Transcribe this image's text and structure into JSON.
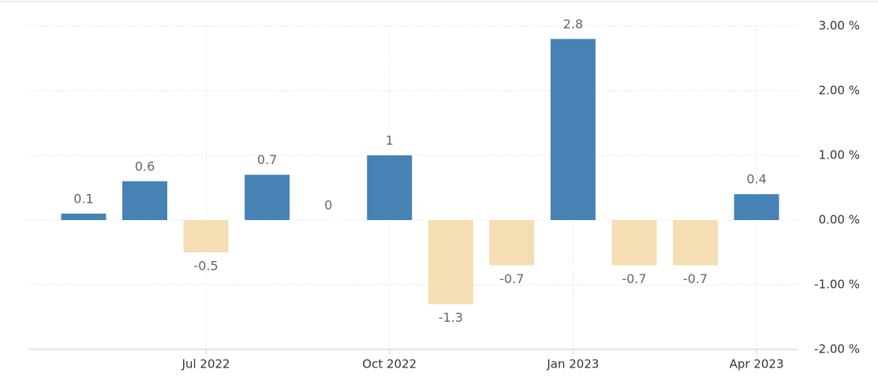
{
  "chart_data": {
    "type": "bar",
    "categories": [
      null,
      null,
      "Jul 2022",
      null,
      null,
      "Oct 2022",
      null,
      null,
      "Jan 2023",
      null,
      null,
      "Apr 2023"
    ],
    "values": [
      0.1,
      0.6,
      -0.5,
      0.7,
      0,
      1,
      -1.3,
      -0.7,
      2.8,
      -0.7,
      -0.7,
      0.4
    ],
    "color_positive": "#4682b4",
    "color_negative": "#f5deb3",
    "ylim": [
      -2,
      3
    ],
    "yticks": [
      {
        "value": -2,
        "label": "-2.00 %"
      },
      {
        "value": -1,
        "label": "-1.00 %"
      },
      {
        "value": 0,
        "label": "0.00 %"
      },
      {
        "value": 1,
        "label": "1.00 %"
      },
      {
        "value": 2,
        "label": "2.00 %"
      },
      {
        "value": 3,
        "label": "3.00 %"
      }
    ],
    "grid": true
  }
}
